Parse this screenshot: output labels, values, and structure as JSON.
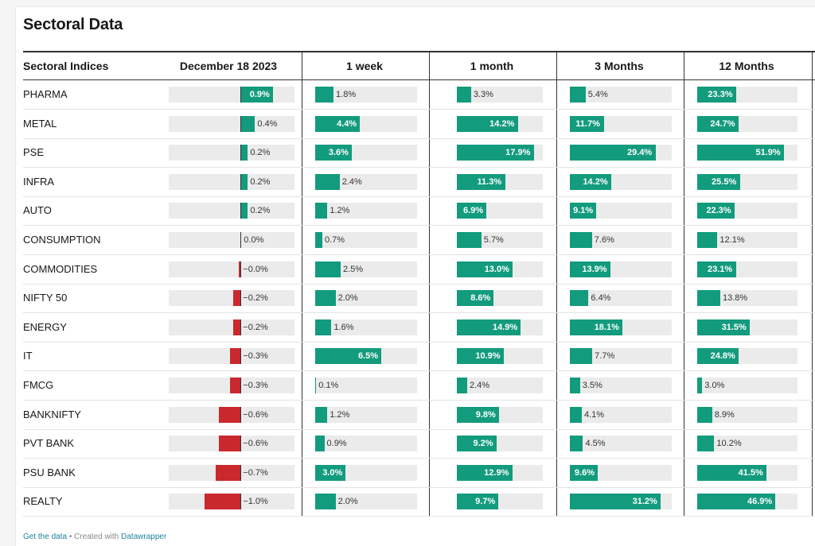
{
  "page": {
    "title": "Sectoral Data",
    "footer": {
      "get_data": "Get the data",
      "separator": " • Created with ",
      "brand": "Datawrapper"
    }
  },
  "colors": {
    "positive": "#139b7d",
    "negative": "#c9282d",
    "track": "#ebebeb"
  },
  "chart_data": {
    "type": "table",
    "label_header": "Sectoral Indices",
    "columns": [
      {
        "key": "dec18",
        "header": "December 18 2023",
        "domain": [
          -2,
          1.5
        ]
      },
      {
        "key": "w1",
        "header": "1 week",
        "domain": [
          0,
          10
        ]
      },
      {
        "key": "m1",
        "header": "1 month",
        "domain": [
          0,
          20
        ]
      },
      {
        "key": "m3",
        "header": "3 Months",
        "domain": [
          0,
          35
        ]
      },
      {
        "key": "m12",
        "header": "12 Months",
        "domain": [
          0,
          60
        ]
      }
    ],
    "rows": [
      {
        "name": "PHARMA",
        "values": [
          0.9,
          1.8,
          3.3,
          5.4,
          23.3
        ]
      },
      {
        "name": "METAL",
        "values": [
          0.4,
          4.4,
          14.2,
          11.7,
          24.7
        ]
      },
      {
        "name": "PSE",
        "values": [
          0.2,
          3.6,
          17.9,
          29.4,
          51.9
        ]
      },
      {
        "name": "INFRA",
        "values": [
          0.2,
          2.4,
          11.3,
          14.2,
          25.5
        ]
      },
      {
        "name": "AUTO",
        "values": [
          0.2,
          1.2,
          6.9,
          9.1,
          22.3
        ]
      },
      {
        "name": "CONSUMPTION",
        "values": [
          0.0,
          0.7,
          5.7,
          7.6,
          12.1
        ]
      },
      {
        "name": "COMMODITIES",
        "values": [
          -0.0,
          2.5,
          13.0,
          13.9,
          23.1
        ]
      },
      {
        "name": "NIFTY 50",
        "values": [
          -0.2,
          2.0,
          8.6,
          6.4,
          13.8
        ]
      },
      {
        "name": "ENERGY",
        "values": [
          -0.2,
          1.6,
          14.9,
          18.1,
          31.5
        ]
      },
      {
        "name": "IT",
        "values": [
          -0.3,
          6.5,
          10.9,
          7.7,
          24.8
        ]
      },
      {
        "name": "FMCG",
        "values": [
          -0.3,
          0.1,
          2.4,
          3.5,
          3.0
        ]
      },
      {
        "name": "BANKNIFTY",
        "values": [
          -0.6,
          1.2,
          9.8,
          4.1,
          8.9
        ]
      },
      {
        "name": "PVT BANK",
        "values": [
          -0.6,
          0.9,
          9.2,
          4.5,
          10.2
        ]
      },
      {
        "name": "PSU BANK",
        "values": [
          -0.7,
          3.0,
          12.9,
          9.6,
          41.5
        ]
      },
      {
        "name": "REALTY",
        "values": [
          -1.0,
          2.0,
          9.7,
          31.2,
          46.9
        ]
      }
    ]
  }
}
